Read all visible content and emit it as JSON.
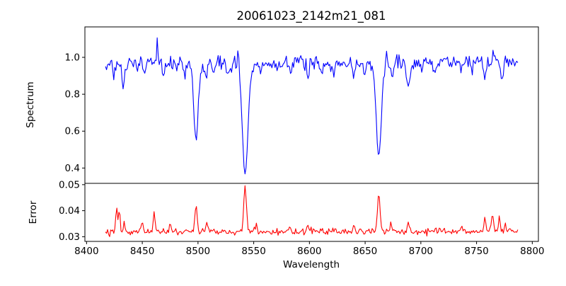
{
  "figure": {
    "title": "20061023_2142m21_081",
    "background": "#ffffff"
  },
  "chart_data": {
    "type": "line",
    "title": "20061023_2142m21_081",
    "xlabel": "Wavelength",
    "legend": "none",
    "grid": "off",
    "xlim": [
      8398.5,
      8805.5
    ],
    "x_data_range": [
      8417,
      8787
    ],
    "xticks": [
      8400,
      8450,
      8500,
      8550,
      8600,
      8650,
      8700,
      8750,
      8800
    ],
    "xtick_labels": [
      "8400",
      "8450",
      "8500",
      "8550",
      "8600",
      "8650",
      "8700",
      "8750",
      "8800"
    ],
    "n_points": 400,
    "noise_seed": 42,
    "panels": [
      {
        "name": "spectrum",
        "ylabel": "Spectrum",
        "line_color": "#0000ff",
        "ylim": [
          0.317,
          1.165
        ],
        "yticks": [
          0.4,
          0.6,
          0.8,
          1.0
        ],
        "ytick_labels": [
          "0.4",
          "0.6",
          "0.8",
          "1.0"
        ],
        "continuum": 0.97,
        "noise_sigma": 0.02,
        "absorption_lines": [
          {
            "center": 8424.5,
            "depth": 0.1,
            "width": 1.0
          },
          {
            "center": 8432.8,
            "depth": 0.14,
            "width": 1.3
          },
          {
            "center": 8446.0,
            "depth": 0.05,
            "width": 0.9
          },
          {
            "center": 8452.0,
            "depth": 0.04,
            "width": 0.9
          },
          {
            "center": 8468.5,
            "depth": 0.07,
            "width": 1.0
          },
          {
            "center": 8481.0,
            "depth": 0.04,
            "width": 0.9
          },
          {
            "center": 8488.0,
            "depth": 0.07,
            "width": 0.9
          },
          {
            "center": 8498.2,
            "depth": 0.385,
            "width": 1.8
          },
          {
            "center": 8498.2,
            "depth": 0.04,
            "width": 5.0
          },
          {
            "center": 8507.5,
            "depth": 0.09,
            "width": 1.0
          },
          {
            "center": 8514.0,
            "depth": 0.05,
            "width": 0.9
          },
          {
            "center": 8527.0,
            "depth": 0.04,
            "width": 0.9
          },
          {
            "center": 8542.3,
            "depth": 0.555,
            "width": 2.4
          },
          {
            "center": 8542.3,
            "depth": 0.05,
            "width": 6.0
          },
          {
            "center": 8556.0,
            "depth": 0.04,
            "width": 0.9
          },
          {
            "center": 8571.0,
            "depth": 0.03,
            "width": 0.9
          },
          {
            "center": 8583.0,
            "depth": 0.05,
            "width": 0.9
          },
          {
            "center": 8598.5,
            "depth": 0.09,
            "width": 1.1
          },
          {
            "center": 8611.0,
            "depth": 0.04,
            "width": 0.9
          },
          {
            "center": 8621.5,
            "depth": 0.07,
            "width": 1.0
          },
          {
            "center": 8633.0,
            "depth": 0.04,
            "width": 0.9
          },
          {
            "center": 8640.0,
            "depth": 0.08,
            "width": 1.0
          },
          {
            "center": 8649.0,
            "depth": 0.06,
            "width": 0.9
          },
          {
            "center": 8662.2,
            "depth": 0.48,
            "width": 2.1
          },
          {
            "center": 8662.2,
            "depth": 0.04,
            "width": 5.0
          },
          {
            "center": 8674.5,
            "depth": 0.08,
            "width": 1.0
          },
          {
            "center": 8688.7,
            "depth": 0.16,
            "width": 1.3
          },
          {
            "center": 8701.0,
            "depth": 0.04,
            "width": 0.9
          },
          {
            "center": 8713.0,
            "depth": 0.05,
            "width": 0.9
          },
          {
            "center": 8736.0,
            "depth": 0.04,
            "width": 0.9
          },
          {
            "center": 8746.0,
            "depth": 0.04,
            "width": 0.9
          },
          {
            "center": 8757.0,
            "depth": 0.08,
            "width": 1.0
          },
          {
            "center": 8772.5,
            "depth": 0.08,
            "width": 1.0
          }
        ],
        "up_spikes": [
          {
            "center": 8463.5,
            "height": 0.15,
            "width": 0.55
          },
          {
            "center": 8536.0,
            "height": 0.12,
            "width": 0.55
          },
          {
            "center": 8669.0,
            "height": 0.08,
            "width": 0.55
          },
          {
            "center": 8704.0,
            "height": 0.05,
            "width": 0.5
          },
          {
            "center": 8765.0,
            "height": 0.06,
            "width": 0.5
          }
        ]
      },
      {
        "name": "error",
        "ylabel": "Error",
        "line_color": "#ff0000",
        "ylim": [
          0.0282,
          0.0505
        ],
        "yticks": [
          0.03,
          0.04,
          0.05
        ],
        "ytick_labels": [
          "0.03",
          "0.04",
          "0.05"
        ],
        "baseline": 0.032,
        "noise_sigma": 0.0006,
        "spikes": [
          {
            "center": 8427.0,
            "height": 0.009,
            "width": 0.9
          },
          {
            "center": 8429.5,
            "height": 0.008,
            "width": 0.7
          },
          {
            "center": 8434.0,
            "height": 0.003,
            "width": 0.7
          },
          {
            "center": 8450.0,
            "height": 0.004,
            "width": 0.8
          },
          {
            "center": 8460.5,
            "height": 0.0075,
            "width": 0.8
          },
          {
            "center": 8475.0,
            "height": 0.002,
            "width": 0.7
          },
          {
            "center": 8498.2,
            "height": 0.009,
            "width": 1.0
          },
          {
            "center": 8508.0,
            "height": 0.004,
            "width": 0.8
          },
          {
            "center": 8542.3,
            "height": 0.0172,
            "width": 1.2
          },
          {
            "center": 8552.0,
            "height": 0.003,
            "width": 0.8
          },
          {
            "center": 8583.0,
            "height": 0.002,
            "width": 0.7
          },
          {
            "center": 8598.5,
            "height": 0.0025,
            "width": 0.8
          },
          {
            "center": 8640.0,
            "height": 0.002,
            "width": 0.8
          },
          {
            "center": 8662.2,
            "height": 0.015,
            "width": 1.1
          },
          {
            "center": 8673.0,
            "height": 0.0035,
            "width": 0.8
          },
          {
            "center": 8688.7,
            "height": 0.0035,
            "width": 0.9
          },
          {
            "center": 8737.0,
            "height": 0.002,
            "width": 0.7
          },
          {
            "center": 8757.5,
            "height": 0.005,
            "width": 0.9
          },
          {
            "center": 8764.5,
            "height": 0.0065,
            "width": 0.8
          },
          {
            "center": 8770.5,
            "height": 0.0055,
            "width": 0.8
          },
          {
            "center": 8776.0,
            "height": 0.003,
            "width": 0.7
          }
        ]
      }
    ]
  }
}
